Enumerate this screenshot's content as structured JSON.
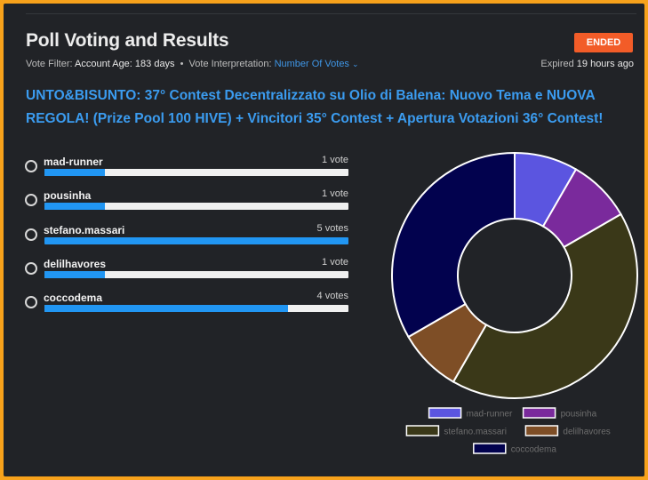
{
  "header": {
    "title": "Poll Voting and Results",
    "status_badge": "ENDED",
    "vote_filter_label": "Vote Filter:",
    "vote_filter_value": "Account Age: 183 days",
    "separator": "•",
    "interpretation_label": "Vote Interpretation:",
    "interpretation_value": "Number Of Votes",
    "expiry_prefix": "Expired",
    "expiry_value": "19 hours ago"
  },
  "post_title": "UNTO&BISUNTO: 37° Contest Decentralizzato su Olio di Balena: Nuovo Tema e NUOVA REGOLA! (Prize Pool 100 HIVE) + Vincitori 35° Contest + Apertura Votazioni 36° Contest!",
  "options": [
    {
      "name": "mad-runner",
      "votes_label": "1 vote",
      "votes": 1
    },
    {
      "name": "pousinha",
      "votes_label": "1 vote",
      "votes": 1
    },
    {
      "name": "stefano.massari",
      "votes_label": "5 votes",
      "votes": 5
    },
    {
      "name": "delilhavores",
      "votes_label": "1 vote",
      "votes": 1
    },
    {
      "name": "coccodema",
      "votes_label": "4 votes",
      "votes": 4
    }
  ],
  "colors": {
    "accent": "#2196f3",
    "badge": "#f25c28",
    "frame": "#f7a21b"
  },
  "chart_data": {
    "type": "pie",
    "categories": [
      "mad-runner",
      "pousinha",
      "stefano.massari",
      "delilhavores",
      "coccodema"
    ],
    "values": [
      1,
      1,
      5,
      1,
      4
    ],
    "colors": [
      "#5b55e0",
      "#7a2a9c",
      "#3a3818",
      "#7e4e26",
      "#02024e"
    ],
    "legend_position": "bottom"
  }
}
